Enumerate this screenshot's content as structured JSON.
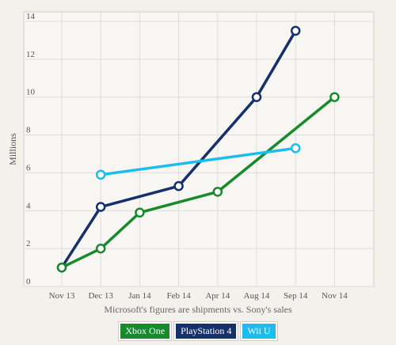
{
  "chart_data": {
    "type": "line",
    "title": "",
    "ylabel": "Millions",
    "xlabel": "",
    "caption": "Microsoft's figures are shipments vs. Sony's sales",
    "categories": [
      "Nov 13",
      "Dec 13",
      "Jan 14",
      "Feb 14",
      "Apr 14",
      "Aug 14",
      "Sep 14",
      "Nov 14"
    ],
    "ylim": [
      0,
      14.5
    ],
    "yticks": [
      0,
      2,
      4,
      6,
      8,
      10,
      12,
      14
    ],
    "grid": true,
    "legend_position": "bottom",
    "series": [
      {
        "name": "PlayStation 4",
        "color": "#15306b",
        "points": [
          {
            "x": "Nov 13",
            "y": 1.0
          },
          {
            "x": "Dec 13",
            "y": 4.2
          },
          {
            "x": "Feb 14",
            "y": 5.3
          },
          {
            "x": "Aug 14",
            "y": 10.0
          },
          {
            "x": "Sep 14",
            "y": 13.5
          }
        ]
      },
      {
        "name": "Xbox One",
        "color": "#178a2c",
        "points": [
          {
            "x": "Nov 13",
            "y": 1.0
          },
          {
            "x": "Dec 13",
            "y": 2.0
          },
          {
            "x": "Jan 14",
            "y": 3.9
          },
          {
            "x": "Apr 14",
            "y": 5.0
          },
          {
            "x": "Nov 14",
            "y": 10.0
          }
        ]
      },
      {
        "name": "Wii U",
        "color": "#1bbcf0",
        "points": [
          {
            "x": "Dec 13",
            "y": 5.9
          },
          {
            "x": "Sep 14",
            "y": 7.3
          }
        ]
      }
    ],
    "legend": [
      {
        "label": "Xbox One",
        "color": "#178a2c"
      },
      {
        "label": "PlayStation 4",
        "color": "#15306b"
      },
      {
        "label": "Wii U",
        "color": "#1bbcf0"
      }
    ]
  }
}
